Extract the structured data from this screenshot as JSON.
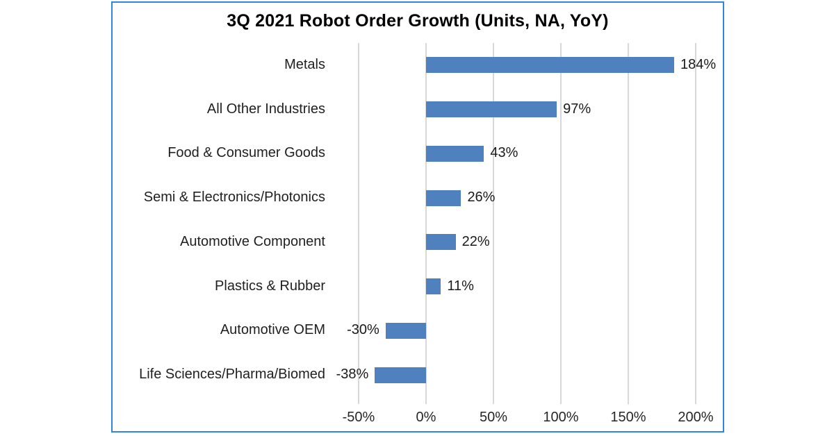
{
  "chart_data": {
    "type": "bar",
    "orientation": "horizontal",
    "title": "3Q 2021 Robot Order Growth (Units, NA, YoY)",
    "categories": [
      "Metals",
      "All Other Industries",
      "Food & Consumer Goods",
      "Semi & Electronics/Photonics",
      "Automotive Component",
      "Plastics & Rubber",
      "Automotive OEM",
      "Life Sciences/Pharma/Biomed"
    ],
    "values": [
      184,
      97,
      43,
      26,
      22,
      11,
      -30,
      -38
    ],
    "value_labels": [
      "184%",
      "97%",
      "43%",
      "26%",
      "22%",
      "11%",
      "-30%",
      "-38%"
    ],
    "x_ticks": {
      "values": [
        -50,
        0,
        50,
        100,
        150,
        200
      ],
      "labels": [
        "-50%",
        "0%",
        "50%",
        "100%",
        "150%",
        "200%"
      ]
    },
    "xlim": [
      -50,
      200
    ],
    "grid": "vertical",
    "legend": "none",
    "colors": {
      "bar": "#4E81BD",
      "frame_border": "#2E86DE",
      "gridline": "#D8D8D8",
      "title_text": "#000000",
      "label_text": "#1F1F1F",
      "background": "#FFFFFF"
    }
  }
}
